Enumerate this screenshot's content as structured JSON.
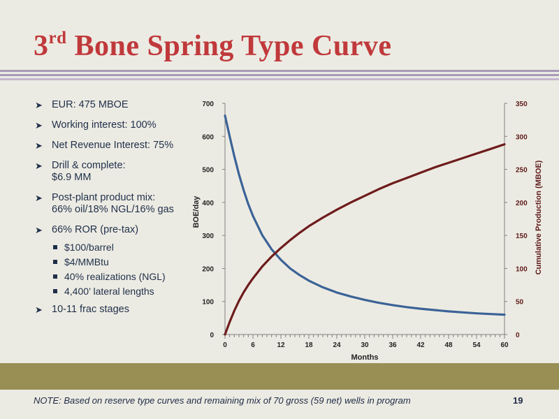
{
  "slide": {
    "title_main": "3",
    "title_sup": "rd",
    "title_rest": " Bone Spring Type Curve",
    "page_number": "19",
    "note": "NOTE: Based on reserve type curves and remaining mix of 70 gross (59 net) wells in program"
  },
  "bullets": [
    {
      "lines": [
        "EUR: 475 MBOE"
      ]
    },
    {
      "lines": [
        "Working interest: 100%"
      ]
    },
    {
      "lines": [
        "Net Revenue Interest: 75%"
      ]
    },
    {
      "lines": [
        "Drill & complete:",
        "$6.9 MM"
      ]
    },
    {
      "lines": [
        "Post-plant product mix:",
        "66% oil/18% NGL/16% gas"
      ]
    },
    {
      "lines": [
        "66% ROR (pre-tax)"
      ]
    },
    {
      "lines": [
        "10-11 frac stages"
      ]
    }
  ],
  "sub_bullets": [
    "$100/barrel",
    "$4/MMBtu",
    "40% realizations (NGL)",
    "4,400’ lateral lengths"
  ],
  "colors": {
    "title": "#c0393b",
    "rate_line": "#3b6397",
    "cumulative_line": "#6e1c1c",
    "band": "#998f55"
  },
  "chart_data": {
    "type": "line",
    "xlabel": "Months",
    "ylabel_left": "BOE/day",
    "ylabel_right": "Cumulative Production (MBOE)",
    "x_ticks": [
      "0",
      "6",
      "12",
      "18",
      "24",
      "30",
      "36",
      "42",
      "48",
      "54",
      "60"
    ],
    "left_ticks": [
      "0",
      "100",
      "200",
      "300",
      "400",
      "500",
      "600",
      "700"
    ],
    "right_ticks": [
      "0",
      "50",
      "100",
      "150",
      "200",
      "250",
      "300",
      "350"
    ],
    "xlim": [
      0,
      60
    ],
    "ylim_left": [
      0,
      700
    ],
    "ylim_right": [
      0,
      350
    ],
    "grid": false,
    "legend": "none",
    "series": [
      {
        "axis": "left",
        "x": [
          0,
          1,
          2,
          3,
          4,
          5,
          6,
          8,
          10,
          12,
          14,
          16,
          18,
          21,
          24,
          27,
          30,
          33,
          36,
          39,
          42,
          45,
          48,
          51,
          54,
          57,
          60
        ],
        "values": [
          663,
          600,
          540,
          485,
          437,
          395,
          359,
          301,
          258,
          226,
          200,
          180,
          163,
          143,
          127,
          115,
          105,
          96,
          89,
          83,
          78,
          74,
          70,
          67,
          64,
          62,
          60
        ]
      },
      {
        "axis": "right",
        "x": [
          0,
          1,
          2,
          3,
          4,
          5,
          6,
          8,
          10,
          12,
          14,
          16,
          18,
          21,
          24,
          27,
          30,
          33,
          36,
          39,
          42,
          45,
          48,
          51,
          54,
          57,
          60
        ],
        "values": [
          0,
          19,
          36,
          51,
          64,
          75,
          85,
          103,
          118,
          131,
          143,
          154,
          164,
          177,
          189,
          200,
          210,
          220,
          229,
          237,
          245,
          253,
          260,
          267,
          274,
          281,
          288
        ]
      }
    ]
  }
}
